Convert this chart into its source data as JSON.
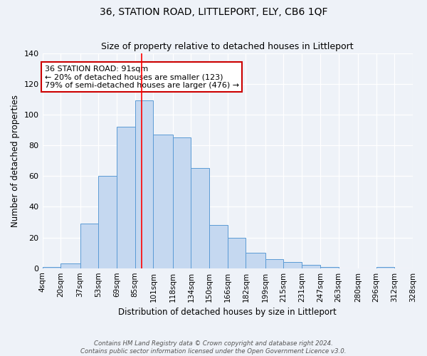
{
  "title": "36, STATION ROAD, LITTLEPORT, ELY, CB6 1QF",
  "subtitle": "Size of property relative to detached houses in Littleport",
  "xlabel": "Distribution of detached houses by size in Littleport",
  "ylabel": "Number of detached properties",
  "bin_labels": [
    "4sqm",
    "20sqm",
    "37sqm",
    "53sqm",
    "69sqm",
    "85sqm",
    "101sqm",
    "118sqm",
    "134sqm",
    "150sqm",
    "166sqm",
    "182sqm",
    "199sqm",
    "215sqm",
    "231sqm",
    "247sqm",
    "263sqm",
    "280sqm",
    "296sqm",
    "312sqm",
    "328sqm"
  ],
  "bar_heights": [
    1,
    3,
    29,
    60,
    92,
    109,
    87,
    85,
    65,
    28,
    20,
    10,
    6,
    4,
    2,
    1,
    0,
    0,
    1,
    0
  ],
  "bar_edges": [
    4,
    20,
    37,
    53,
    69,
    85,
    101,
    118,
    134,
    150,
    166,
    182,
    199,
    215,
    231,
    247,
    263,
    280,
    296,
    312,
    328
  ],
  "bar_color": "#c5d8f0",
  "bar_edgecolor": "#5b9bd5",
  "ylim": [
    0,
    140
  ],
  "yticks": [
    0,
    20,
    40,
    60,
    80,
    100,
    120,
    140
  ],
  "red_line_x": 91,
  "annotation_title": "36 STATION ROAD: 91sqm",
  "annotation_line1": "← 20% of detached houses are smaller (123)",
  "annotation_line2": "79% of semi-detached houses are larger (476) →",
  "annotation_box_color": "#ffffff",
  "annotation_box_edgecolor": "#cc0000",
  "footer_line1": "Contains HM Land Registry data © Crown copyright and database right 2024.",
  "footer_line2": "Contains public sector information licensed under the Open Government Licence v3.0.",
  "background_color": "#eef2f8",
  "grid_color": "#ffffff"
}
